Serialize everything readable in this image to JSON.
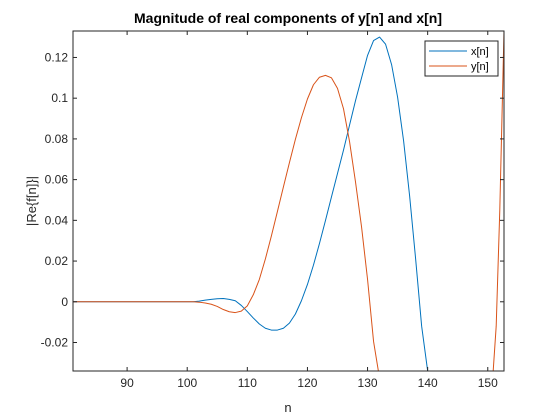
{
  "chart_data": {
    "type": "line",
    "title": "Magnitude of real components of y[n] and x[n]",
    "xlabel": "n",
    "ylabel": "|Re{f[n]}|",
    "xlim": [
      81,
      152.7
    ],
    "ylim": [
      -0.034,
      0.133
    ],
    "xticks": [
      "90",
      "100",
      "110",
      "120",
      "130",
      "140",
      "150"
    ],
    "yticks": [
      "-0.02",
      "0",
      "0.02",
      "0.04",
      "0.06",
      "0.08",
      "0.1",
      "0.12"
    ],
    "legend_position": "top-right",
    "grid": false,
    "series": [
      {
        "name": "x[n]",
        "color": "#0072BD",
        "x": [
          81,
          90,
          100,
          101,
          102,
          103,
          104,
          105,
          106,
          107,
          108,
          109,
          110,
          111,
          112,
          113,
          114,
          115,
          116,
          117,
          118,
          119,
          120,
          121,
          122,
          123,
          124,
          125,
          126,
          127,
          128,
          129,
          130,
          131,
          132,
          133,
          134,
          135,
          136,
          137,
          138,
          139,
          140
        ],
        "y": [
          0,
          0,
          0,
          0,
          0.0003,
          0.0008,
          0.0012,
          0.0015,
          0.0016,
          0.0012,
          0.0005,
          -0.0018,
          -0.0048,
          -0.008,
          -0.0109,
          -0.013,
          -0.0139,
          -0.0139,
          -0.013,
          -0.0105,
          -0.006,
          0.0005,
          0.0085,
          0.018,
          0.0286,
          0.0399,
          0.0515,
          0.063,
          0.0745,
          0.0867,
          0.0988,
          0.11,
          0.121,
          0.1283,
          0.13,
          0.1265,
          0.1165,
          0.1005,
          0.079,
          0.052,
          0.021,
          -0.012,
          -0.034
        ]
      },
      {
        "name": "y[n]",
        "color": "#D95319",
        "x": [
          81,
          90,
          100,
          101,
          102,
          103,
          104,
          105,
          106,
          107,
          108,
          109,
          110,
          111,
          112,
          113,
          114,
          115,
          116,
          117,
          118,
          119,
          120,
          121,
          122,
          123,
          124,
          125,
          126,
          127,
          128,
          129,
          130,
          131,
          131.8,
          150.9,
          151.4,
          152,
          152.7
        ],
        "y": [
          0,
          0,
          0,
          0,
          -0.0002,
          -0.0006,
          -0.0012,
          -0.0023,
          -0.0038,
          -0.0049,
          -0.0053,
          -0.0046,
          -0.002,
          0.0035,
          0.011,
          0.021,
          0.0323,
          0.0443,
          0.0564,
          0.0683,
          0.0798,
          0.0904,
          0.0996,
          0.1066,
          0.1103,
          0.1112,
          0.11,
          0.1048,
          0.0948,
          0.0788,
          0.0588,
          0.0368,
          0.011,
          -0.0195,
          -0.034,
          -0.034,
          -0.012,
          0.045,
          0.133
        ]
      }
    ]
  }
}
